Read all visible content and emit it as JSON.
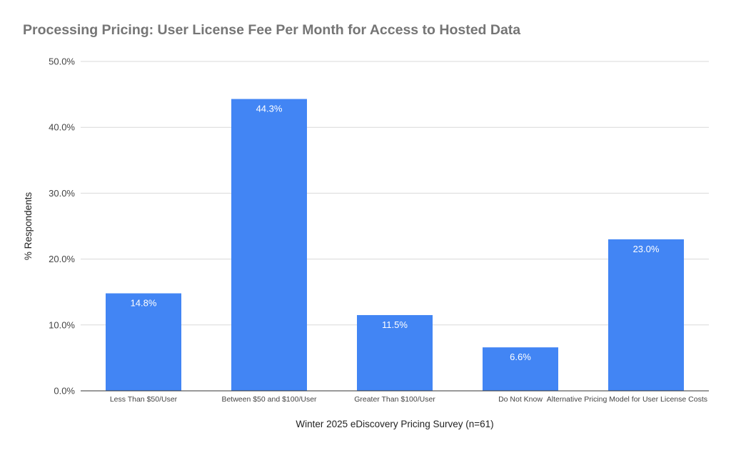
{
  "chart_data": {
    "type": "bar",
    "title": "Processing Pricing: User License Fee Per Month for Access to Hosted Data",
    "xlabel": "Winter 2025 eDiscovery Pricing Survey (n=61)",
    "ylabel": "% Respondents",
    "categories": [
      "Less Than $50/User",
      "Between $50 and $100/User",
      "Greater Than $100/User",
      "Do Not Know",
      "Alternative Pricing Model for User License Costs"
    ],
    "values": [
      14.8,
      44.3,
      11.5,
      6.6,
      23.0
    ],
    "value_labels": [
      "14.8%",
      "44.3%",
      "11.5%",
      "6.6%",
      "23.0%"
    ],
    "ylim": [
      0,
      50
    ],
    "yticks": [
      0,
      10,
      20,
      30,
      40,
      50
    ],
    "ytick_labels": [
      "0.0%",
      "10.0%",
      "20.0%",
      "30.0%",
      "40.0%",
      "50.0%"
    ],
    "grid": true,
    "legend": "none",
    "bar_color": "#4285f4"
  }
}
